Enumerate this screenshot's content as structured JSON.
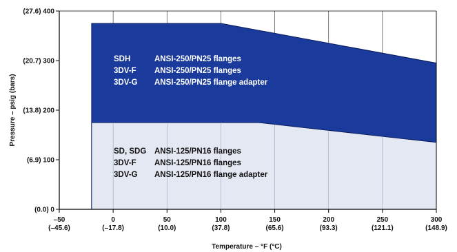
{
  "chart_data": {
    "type": "area",
    "xlabel": "Temperature – °F (°C)",
    "ylabel": "Pressure – psig (bars)",
    "xlim": [
      -50,
      300
    ],
    "ylim": [
      0,
      400
    ],
    "grid": true,
    "x_ticks": [
      {
        "value": -50,
        "line1": "–50",
        "line2": "(–45.6)"
      },
      {
        "value": 0,
        "line1": "0",
        "line2": "(–17.8)"
      },
      {
        "value": 50,
        "line1": "50",
        "line2": "(10.0)"
      },
      {
        "value": 100,
        "line1": "100",
        "line2": "(37.8)"
      },
      {
        "value": 150,
        "line1": "150",
        "line2": "(65.6)"
      },
      {
        "value": 200,
        "line1": "200",
        "line2": "(93.3)"
      },
      {
        "value": 250,
        "line1": "250",
        "line2": "(121.1)"
      },
      {
        "value": 300,
        "line1": "300",
        "line2": "(148.9)"
      }
    ],
    "y_ticks": [
      {
        "value": 0,
        "label": "(0.0) 0"
      },
      {
        "value": 100,
        "label": "(6.9) 100"
      },
      {
        "value": 200,
        "label": "(13.8) 200"
      },
      {
        "value": 300,
        "label": "(20.7) 300"
      },
      {
        "value": 400,
        "label": "(27.6) 400"
      }
    ],
    "series": [
      {
        "name": "ANSI-250/PN25",
        "color": "#1a3a9c",
        "x": [
          -20,
          100,
          300
        ],
        "y": [
          375,
          375,
          295
        ],
        "labels": [
          {
            "model": "SDH",
            "rating": "ANSI-250/PN25 flanges"
          },
          {
            "model": "3DV-F",
            "rating": "ANSI-250/PN25 flanges"
          },
          {
            "model": "3DV-G",
            "rating": "ANSI-250/PN25 flange adapter"
          }
        ]
      },
      {
        "name": "ANSI-125/PN16",
        "color": "#e3e8f2",
        "x": [
          -20,
          135,
          300
        ],
        "y": [
          175,
          175,
          135
        ],
        "labels": [
          {
            "model": "SD, SDG",
            "rating": "ANSI-125/PN16 flanges"
          },
          {
            "model": "3DV-F",
            "rating": "ANSI-125/PN16 flanges"
          },
          {
            "model": "3DV-G",
            "rating": "ANSI-125/PN16 flange adapter"
          }
        ]
      }
    ]
  }
}
